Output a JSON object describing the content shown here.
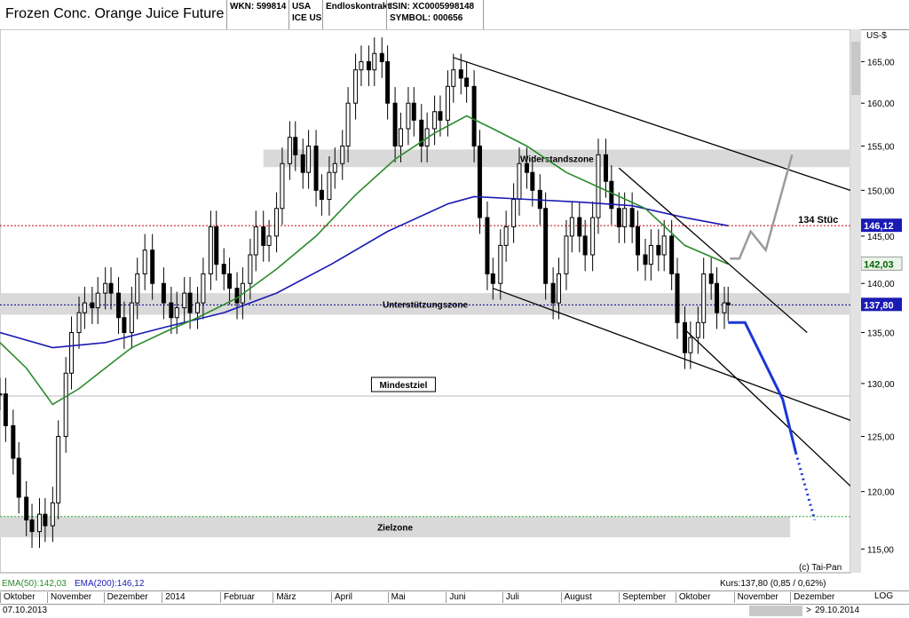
{
  "header": {
    "title": "Frozen Conc. Orange Juice Future",
    "wkn": "WKN: 599814",
    "country": "USA",
    "exchange": "ICE US",
    "contract": "Endloskontrakt",
    "isin": "ISIN: XC0005998148",
    "symbol": "SYMBOL: 000656"
  },
  "footer": {
    "ema50": "EMA(50):142,03",
    "ema200": "EMA(200):146,12",
    "kurs": "Kurs:137,80 (0,85 / 0,62%)",
    "copyright": "(c) Tai-Pan",
    "start_date": "07.10.2013",
    "end_date": "29.10.2014",
    "end_arrow": ">",
    "log_label": "LOG",
    "months": [
      "Oktober",
      "November",
      "Dezember",
      "2014",
      "Februar",
      "März",
      "April",
      "Mai",
      "Juni",
      "Juli",
      "August",
      "September",
      "Oktober",
      "November",
      "Dezember"
    ]
  },
  "colors": {
    "candle": "#000000",
    "ema50": "#2a8a2a",
    "ema200": "#1a1ab4",
    "zone": "#d9d9d9",
    "resistance_line": "#cc0000",
    "support_line": "#00008c",
    "target_line": "#2aa52a",
    "projection_blue": "#1a37d6",
    "projection_grey": "#9a9a9a"
  },
  "chart_data": {
    "type": "candlestick",
    "title": "Frozen Conc. Orange Juice Future",
    "y_unit": "US-$",
    "y_scale": "log",
    "ylim": [
      113,
      169
    ],
    "y_ticks": [
      115,
      120,
      125,
      130,
      135,
      140,
      145,
      150,
      155,
      160,
      165
    ],
    "y_tick_labels": [
      "115,00",
      "120,00",
      "125,00",
      "130,00",
      "135,00",
      "140,00",
      "145,00",
      "150,00",
      "155,00",
      "160,00",
      "165,00"
    ],
    "x_range": [
      "2013-10-07",
      "2015-01-02"
    ],
    "months": [
      {
        "label": "Oktober",
        "date": "2013-10-07"
      },
      {
        "label": "November",
        "date": "2013-11-01"
      },
      {
        "label": "Dezember",
        "date": "2013-12-01"
      },
      {
        "label": "2014",
        "date": "2014-01-01"
      },
      {
        "label": "Februar",
        "date": "2014-02-01"
      },
      {
        "label": "März",
        "date": "2014-03-01"
      },
      {
        "label": "April",
        "date": "2014-04-01"
      },
      {
        "label": "Mai",
        "date": "2014-05-01"
      },
      {
        "label": "Juni",
        "date": "2014-06-01"
      },
      {
        "label": "Juli",
        "date": "2014-07-01"
      },
      {
        "label": "August",
        "date": "2014-08-01"
      },
      {
        "label": "September",
        "date": "2014-09-01"
      },
      {
        "label": "Oktober",
        "date": "2014-10-01"
      },
      {
        "label": "November",
        "date": "2014-11-01"
      },
      {
        "label": "Dezember",
        "date": "2014-12-01"
      }
    ],
    "close_series": [
      [
        "2013-10-07",
        129.0
      ],
      [
        "2013-10-10",
        126.0
      ],
      [
        "2013-10-14",
        123.0
      ],
      [
        "2013-10-17",
        119.5
      ],
      [
        "2013-10-21",
        117.5
      ],
      [
        "2013-10-24",
        116.5
      ],
      [
        "2013-10-28",
        118.0
      ],
      [
        "2013-10-31",
        117.0
      ],
      [
        "2013-11-04",
        119.0
      ],
      [
        "2013-11-07",
        125.0
      ],
      [
        "2013-11-11",
        131.0
      ],
      [
        "2013-11-14",
        135.0
      ],
      [
        "2013-11-18",
        137.0
      ],
      [
        "2013-11-21",
        138.0
      ],
      [
        "2013-11-25",
        137.5
      ],
      [
        "2013-11-28",
        139.0
      ],
      [
        "2013-12-02",
        140.0
      ],
      [
        "2013-12-05",
        139.0
      ],
      [
        "2013-12-09",
        136.5
      ],
      [
        "2013-12-12",
        135.0
      ],
      [
        "2013-12-16",
        138.0
      ],
      [
        "2013-12-19",
        141.0
      ],
      [
        "2013-12-23",
        143.5
      ],
      [
        "2013-12-27",
        140.0
      ],
      [
        "2014-01-02",
        138.0
      ],
      [
        "2014-01-06",
        136.5
      ],
      [
        "2014-01-09",
        137.5
      ],
      [
        "2014-01-13",
        139.0
      ],
      [
        "2014-01-16",
        137.0
      ],
      [
        "2014-01-20",
        138.0
      ],
      [
        "2014-01-23",
        141.0
      ],
      [
        "2014-01-27",
        146.0
      ],
      [
        "2014-01-30",
        142.0
      ],
      [
        "2014-02-03",
        141.0
      ],
      [
        "2014-02-06",
        139.5
      ],
      [
        "2014-02-10",
        138.0
      ],
      [
        "2014-02-13",
        140.0
      ],
      [
        "2014-02-17",
        143.0
      ],
      [
        "2014-02-20",
        146.0
      ],
      [
        "2014-02-24",
        144.0
      ],
      [
        "2014-02-27",
        145.0
      ],
      [
        "2014-03-03",
        148.0
      ],
      [
        "2014-03-06",
        153.0
      ],
      [
        "2014-03-10",
        156.0
      ],
      [
        "2014-03-13",
        154.0
      ],
      [
        "2014-03-17",
        152.0
      ],
      [
        "2014-03-20",
        155.0
      ],
      [
        "2014-03-24",
        150.0
      ],
      [
        "2014-03-27",
        149.0
      ],
      [
        "2014-03-31",
        152.0
      ],
      [
        "2014-04-03",
        153.0
      ],
      [
        "2014-04-07",
        155.0
      ],
      [
        "2014-04-10",
        160.0
      ],
      [
        "2014-04-14",
        164.0
      ],
      [
        "2014-04-17",
        165.0
      ],
      [
        "2014-04-21",
        164.0
      ],
      [
        "2014-04-24",
        166.0
      ],
      [
        "2014-04-28",
        165.0
      ],
      [
        "2014-05-01",
        160.0
      ],
      [
        "2014-05-05",
        155.0
      ],
      [
        "2014-05-08",
        157.0
      ],
      [
        "2014-05-12",
        160.0
      ],
      [
        "2014-05-15",
        158.0
      ],
      [
        "2014-05-19",
        155.0
      ],
      [
        "2014-05-22",
        157.0
      ],
      [
        "2014-05-26",
        159.0
      ],
      [
        "2014-05-29",
        158.0
      ],
      [
        "2014-06-02",
        162.0
      ],
      [
        "2014-06-05",
        164.0
      ],
      [
        "2014-06-09",
        163.0
      ],
      [
        "2014-06-12",
        162.0
      ],
      [
        "2014-06-16",
        155.0
      ],
      [
        "2014-06-19",
        147.0
      ],
      [
        "2014-06-23",
        141.0
      ],
      [
        "2014-06-26",
        140.0
      ],
      [
        "2014-06-30",
        144.0
      ],
      [
        "2014-07-03",
        146.0
      ],
      [
        "2014-07-07",
        149.0
      ],
      [
        "2014-07-10",
        153.0
      ],
      [
        "2014-07-14",
        152.0
      ],
      [
        "2014-07-17",
        150.0
      ],
      [
        "2014-07-21",
        148.0
      ],
      [
        "2014-07-24",
        140.0
      ],
      [
        "2014-07-28",
        138.0
      ],
      [
        "2014-07-31",
        141.0
      ],
      [
        "2014-08-04",
        145.0
      ],
      [
        "2014-08-07",
        147.0
      ],
      [
        "2014-08-11",
        145.0
      ],
      [
        "2014-08-14",
        143.0
      ],
      [
        "2014-08-18",
        147.0
      ],
      [
        "2014-08-21",
        154.0
      ],
      [
        "2014-08-25",
        151.0
      ],
      [
        "2014-08-28",
        148.0
      ],
      [
        "2014-09-01",
        146.0
      ],
      [
        "2014-09-04",
        148.0
      ],
      [
        "2014-09-08",
        146.0
      ],
      [
        "2014-09-11",
        143.0
      ],
      [
        "2014-09-15",
        142.0
      ],
      [
        "2014-09-18",
        144.0
      ],
      [
        "2014-09-22",
        143.0
      ],
      [
        "2014-09-25",
        145.0
      ],
      [
        "2014-09-29",
        141.0
      ],
      [
        "2014-10-02",
        136.0
      ],
      [
        "2014-10-06",
        133.0
      ],
      [
        "2014-10-09",
        134.5
      ],
      [
        "2014-10-13",
        136.0
      ],
      [
        "2014-10-16",
        141.0
      ],
      [
        "2014-10-20",
        140.0
      ],
      [
        "2014-10-23",
        137.0
      ],
      [
        "2014-10-27",
        138.0
      ],
      [
        "2014-10-29",
        137.8
      ]
    ],
    "ema50_series": [
      [
        "2013-10-07",
        134.0
      ],
      [
        "2013-10-21",
        131.5
      ],
      [
        "2013-11-04",
        128.0
      ],
      [
        "2013-11-18",
        129.5
      ],
      [
        "2013-12-02",
        131.5
      ],
      [
        "2013-12-16",
        133.5
      ],
      [
        "2014-01-02",
        135.0
      ],
      [
        "2014-01-20",
        136.5
      ],
      [
        "2014-02-10",
        138.5
      ],
      [
        "2014-03-03",
        141.5
      ],
      [
        "2014-03-24",
        145.0
      ],
      [
        "2014-04-14",
        149.5
      ],
      [
        "2014-05-05",
        153.5
      ],
      [
        "2014-05-26",
        156.5
      ],
      [
        "2014-06-12",
        158.5
      ],
      [
        "2014-06-26",
        157.0
      ],
      [
        "2014-07-14",
        155.0
      ],
      [
        "2014-08-04",
        152.0
      ],
      [
        "2014-08-25",
        150.0
      ],
      [
        "2014-09-15",
        148.0
      ],
      [
        "2014-10-06",
        144.0
      ],
      [
        "2014-10-29",
        142.03
      ]
    ],
    "ema200_series": [
      [
        "2013-10-07",
        135.0
      ],
      [
        "2013-11-04",
        133.5
      ],
      [
        "2013-12-02",
        134.0
      ],
      [
        "2014-01-02",
        135.5
      ],
      [
        "2014-02-03",
        137.0
      ],
      [
        "2014-03-03",
        139.0
      ],
      [
        "2014-04-01",
        142.0
      ],
      [
        "2014-05-01",
        145.5
      ],
      [
        "2014-06-02",
        148.5
      ],
      [
        "2014-06-16",
        149.3
      ],
      [
        "2014-07-14",
        149.0
      ],
      [
        "2014-08-11",
        148.7
      ],
      [
        "2014-09-08",
        148.3
      ],
      [
        "2014-10-06",
        147.0
      ],
      [
        "2014-10-29",
        146.12
      ]
    ],
    "zones": [
      {
        "label": "Widerstandszone",
        "from": "2014-02-24",
        "to": "2015-01-02",
        "low": 152.6,
        "high": 154.6
      },
      {
        "label": "Unterstützungszone",
        "from": "2013-10-07",
        "to": "2015-01-02",
        "low": 136.8,
        "high": 139.0
      },
      {
        "label": "Zielzone",
        "from": "2013-10-07",
        "to": "2014-12-01",
        "low": 116.0,
        "high": 117.8
      }
    ],
    "hlines": [
      {
        "value": 146.12,
        "style": "dotted",
        "color": "#cc0000",
        "badge": "146,12",
        "badge_bg": "#1a1ab4",
        "badge_fg": "#ffffff"
      },
      {
        "value": 137.8,
        "style": "dotted",
        "color": "#00008c",
        "badge": "137,80",
        "badge_bg": "#1a1ab4",
        "badge_fg": "#ffffff"
      },
      {
        "value": 117.8,
        "style": "dotted",
        "color": "#2aa52a"
      },
      {
        "value": 128.8,
        "style": "solid",
        "color": "#bbbbbb",
        "label": "Mindestziel",
        "label_x_date": "2014-05-08"
      }
    ],
    "ema50_badge": {
      "value": 142.03,
      "label": "142,03",
      "bg": "#e8f5e8",
      "fg": "#006400"
    },
    "trendlines": [
      {
        "from": [
          "2014-06-05",
          165.5
        ],
        "to": [
          "2015-01-02",
          150.0
        ]
      },
      {
        "from": [
          "2014-06-26",
          139.5
        ],
        "to": [
          "2015-01-02",
          126.5
        ]
      },
      {
        "from": [
          "2014-09-01",
          152.5
        ],
        "to": [
          "2014-12-10",
          135.0
        ]
      },
      {
        "from": [
          "2014-10-06",
          135.3
        ],
        "to": [
          "2015-01-02",
          120.5
        ]
      }
    ],
    "projection_blue": [
      [
        "2014-10-29",
        136.0
      ],
      [
        "2014-11-07",
        136.0
      ],
      [
        "2014-11-27",
        128.5
      ],
      [
        "2014-12-04",
        123.5
      ],
      [
        "2014-12-14",
        117.5
      ]
    ],
    "projection_grey": [
      [
        "2014-10-30",
        142.6
      ],
      [
        "2014-11-04",
        142.6
      ],
      [
        "2014-11-10",
        145.5
      ],
      [
        "2014-11-18",
        143.5
      ],
      [
        "2014-12-02",
        154.0
      ]
    ],
    "annotation": {
      "text": "134 Stüc",
      "date": "2014-11-14",
      "value": 146.8
    }
  }
}
